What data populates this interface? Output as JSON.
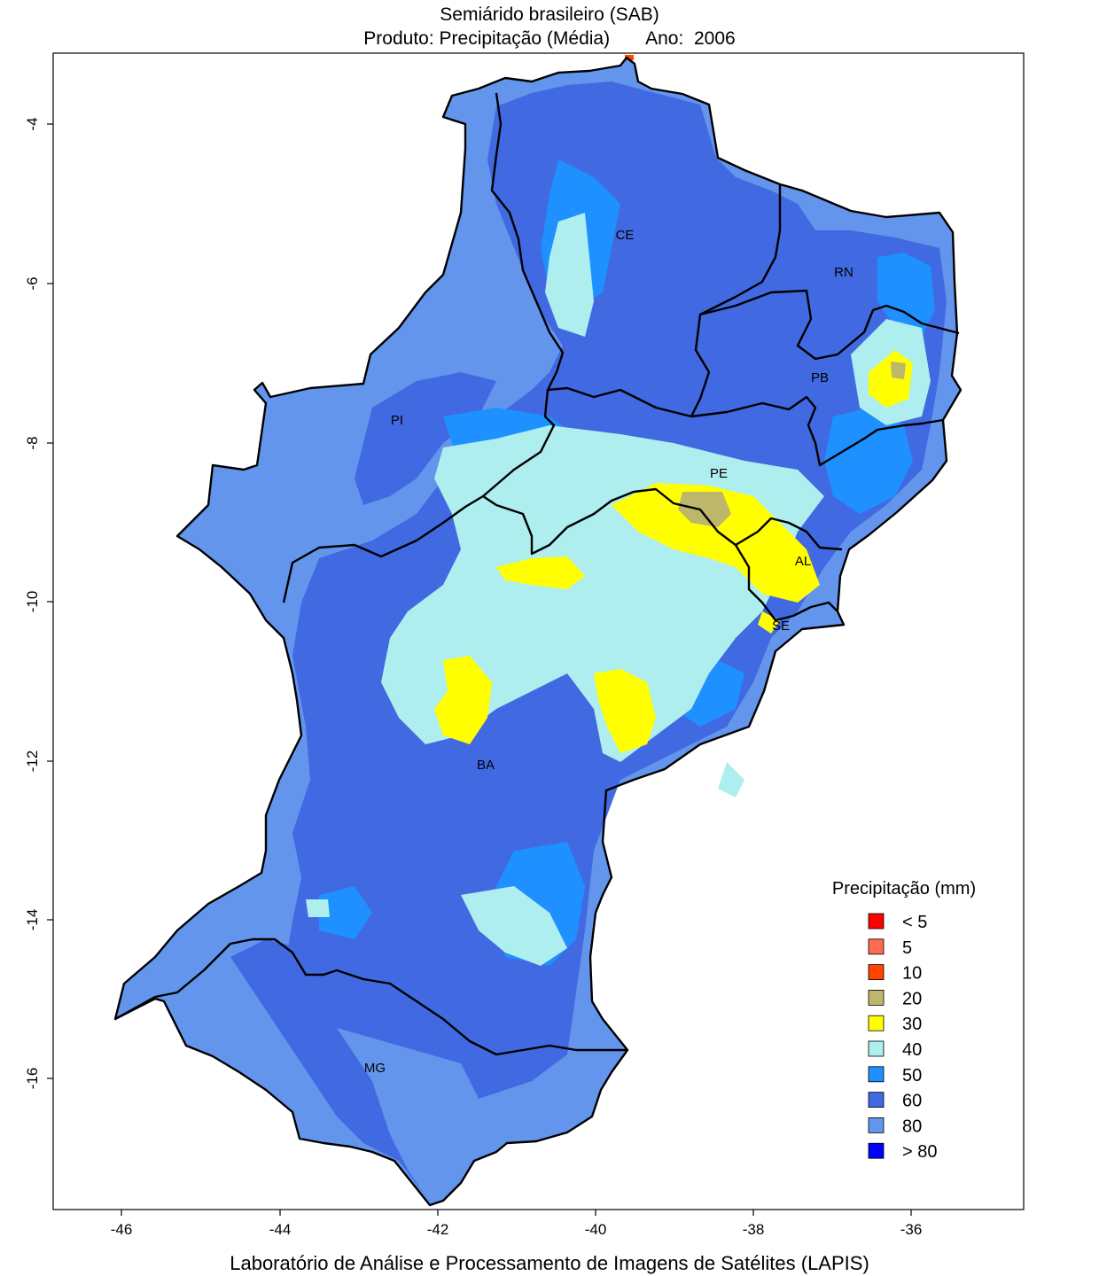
{
  "title": "Semiárido brasileiro (SAB)",
  "subtitle_product": "Produto: Precipitação (Média)",
  "subtitle_year_label": "Ano:",
  "subtitle_year": "2006",
  "footer": "Laboratório de Análise e Processamento de Imagens de Satélites (LAPIS)",
  "axes": {
    "x_ticks": [
      "-46",
      "-44",
      "-42",
      "-40",
      "-38",
      "-36"
    ],
    "y_ticks": [
      "-4",
      "-6",
      "-8",
      "-10",
      "-12",
      "-14",
      "-16"
    ]
  },
  "states": [
    {
      "code": "CE"
    },
    {
      "code": "RN"
    },
    {
      "code": "PB"
    },
    {
      "code": "PI"
    },
    {
      "code": "PE"
    },
    {
      "code": "AL"
    },
    {
      "code": "SE"
    },
    {
      "code": "BA"
    },
    {
      "code": "MG"
    }
  ],
  "legend": {
    "title": "Precipitação (mm)",
    "items": [
      {
        "label": "< 5",
        "color": "#ff0000"
      },
      {
        "label": "5",
        "color": "#ff6a50"
      },
      {
        "label": "10",
        "color": "#ff4500"
      },
      {
        "label": "20",
        "color": "#bdb76b"
      },
      {
        "label": "30",
        "color": "#ffff00"
      },
      {
        "label": "40",
        "color": "#aeeeee"
      },
      {
        "label": "50",
        "color": "#1e90ff"
      },
      {
        "label": "60",
        "color": "#4169e1"
      },
      {
        "label": "80",
        "color": "#6495ed"
      },
      {
        "label": "> 80",
        "color": "#0000ff"
      }
    ]
  }
}
